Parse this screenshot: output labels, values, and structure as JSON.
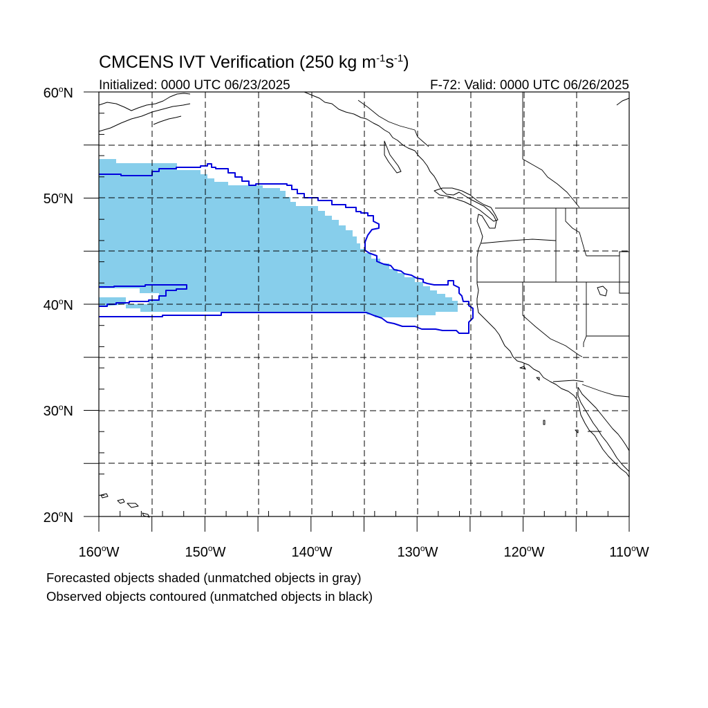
{
  "title": {
    "text": "CMCENS IVT Verification (250 kg m",
    "sup1": "-1",
    "mid": "s",
    "sup2": "-1",
    "end": ")"
  },
  "initialized": "Initialized: 0000 UTC 06/23/2025",
  "valid": "F-72: Valid: 0000 UTC 06/26/2025",
  "lat_labels": [
    {
      "deg": "60",
      "suffix": "N"
    },
    {
      "deg": "50",
      "suffix": "N"
    },
    {
      "deg": "40",
      "suffix": "N"
    },
    {
      "deg": "30",
      "suffix": "N"
    },
    {
      "deg": "20",
      "suffix": "N"
    }
  ],
  "lon_labels": [
    {
      "deg": "160",
      "suffix": "W"
    },
    {
      "deg": "150",
      "suffix": "W"
    },
    {
      "deg": "140",
      "suffix": "W"
    },
    {
      "deg": "130",
      "suffix": "W"
    },
    {
      "deg": "120",
      "suffix": "W"
    },
    {
      "deg": "110",
      "suffix": "W"
    }
  ],
  "notes": {
    "line1": "Forecasted objects shaded (unmatched objects in gray)",
    "line2": "Observed objects contoured (unmatched objects in black)"
  },
  "colors": {
    "forecast_fill": "#87ceeb",
    "observed_contour": "#0000dd",
    "coastline": "#000000"
  },
  "map_extent": {
    "lon_min": -160,
    "lon_max": -110,
    "lat_min": 20,
    "lat_max": 60
  },
  "degree_symbol": "o"
}
